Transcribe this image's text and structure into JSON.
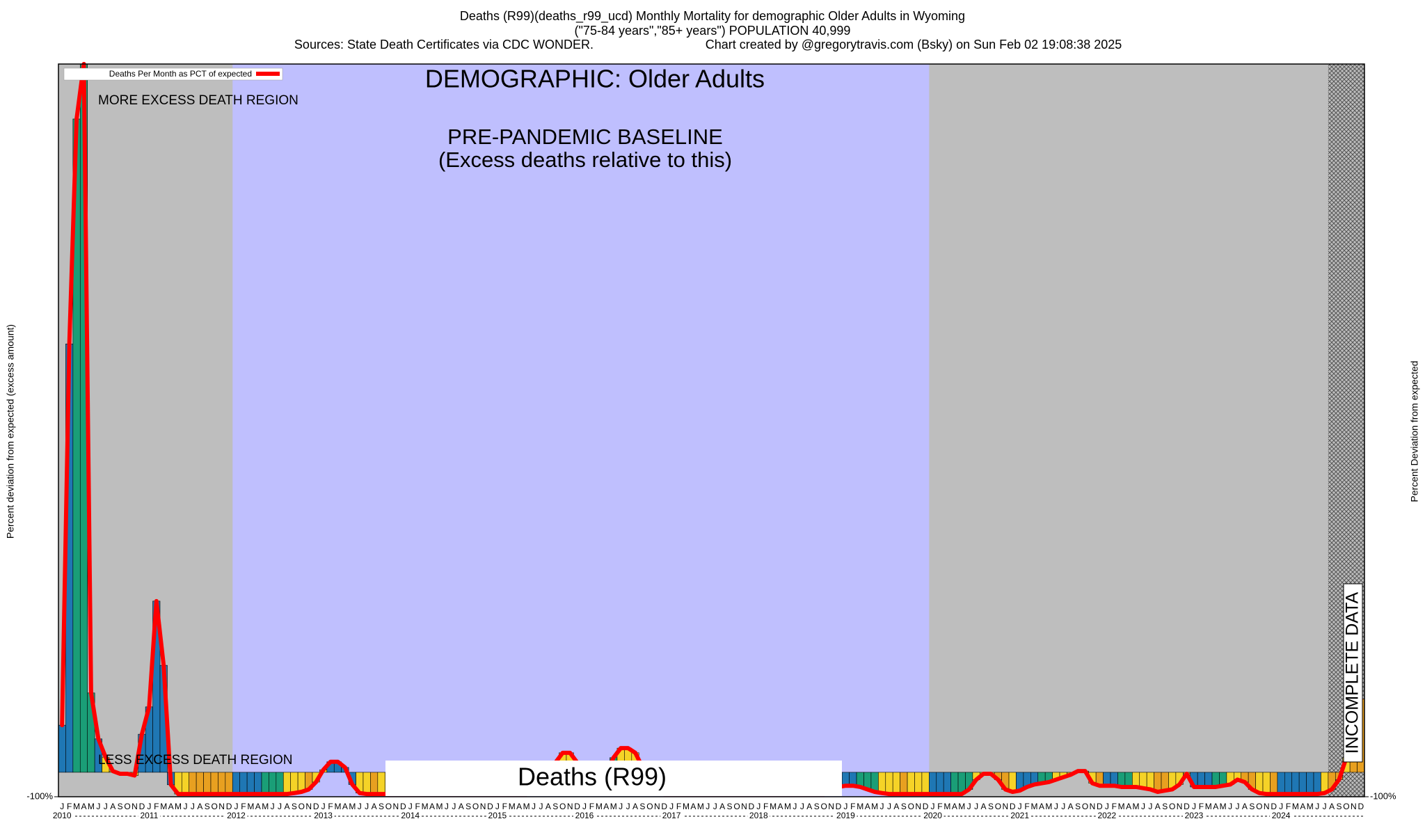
{
  "chart_data": {
    "type": "bar",
    "title": "Deaths (R99)(deaths_r99_ucd) Monthly Mortality for demographic Older Adults in Wyoming",
    "subtitle": "(\"75-84 years\",\"85+ years\") POPULATION 40,999",
    "source": "Sources: State Death Certificates via CDC WONDER.",
    "credit": "Chart created by @gregorytravis.com (Bsky) on Sun Feb 02 19:08:38 2025",
    "y_label": "Percent deviation from expected (excess amount)",
    "y2_label": "Percent Deviation from expected",
    "legend_label": "Deaths Per Month as PCT of expected",
    "line_color": "#ff0000",
    "demographic_label": "DEMOGRAPHIC: Older Adults",
    "baseline_label": "PRE-PANDEMIC BASELINE",
    "baseline_note": "(Excess deaths relative to this)",
    "more_label": "MORE EXCESS DEATH REGION",
    "less_label": "LESS EXCESS DEATH REGION",
    "cause_label": "Deaths (R99)",
    "incomplete_label": "INCOMPLETE DATA",
    "months": [
      "J",
      "F",
      "M",
      "A",
      "M",
      "J",
      "J",
      "A",
      "S",
      "O",
      "N",
      "D"
    ],
    "years": [
      "2010",
      "2011",
      "2012",
      "2013",
      "2014",
      "2015",
      "2016",
      "2017",
      "2018",
      "2019",
      "2020",
      "2021",
      "2022",
      "2023",
      "2024"
    ],
    "ylim": [
      -100,
      2900
    ],
    "yticks": [
      {
        "value": -100,
        "label": "-100%"
      }
    ],
    "values": [
      193,
      1754,
      2675,
      2900,
      325,
      137,
      62,
      5,
      -6,
      -6,
      -13,
      156,
      268,
      701,
      438,
      -51,
      -89,
      -89,
      -89,
      -89,
      -89,
      -89,
      -89,
      -89,
      -89,
      -89,
      -89,
      -89,
      -89,
      -89,
      -89,
      -89,
      -85,
      -80,
      -70,
      -40,
      10,
      43,
      43,
      20,
      -50,
      -85,
      -89,
      -89,
      -89,
      -89,
      -89,
      -89,
      -89,
      -89,
      -89,
      -89,
      -89,
      -89,
      -89,
      -89,
      -89,
      -89,
      -89,
      -89,
      -89,
      -89,
      -89,
      -89,
      -89,
      -85,
      -60,
      -20,
      40,
      80,
      80,
      40,
      -40,
      -70,
      -60,
      -10,
      60,
      99,
      99,
      80,
      20,
      -50,
      -85,
      -89,
      -89,
      -89,
      -89,
      -89,
      -89,
      -89,
      -89,
      -89,
      -89,
      -89,
      -89,
      -89,
      -89,
      -89,
      -89,
      -89,
      -89,
      -89,
      -89,
      -89,
      -89,
      -89,
      -75,
      -60,
      -55,
      -55,
      -60,
      -70,
      -80,
      -85,
      -89,
      -89,
      -89,
      -89,
      -89,
      -89,
      -89,
      -89,
      -89,
      -89,
      -89,
      -70,
      -30,
      -6,
      -6,
      -30,
      -70,
      -80,
      -75,
      -60,
      -50,
      -45,
      -40,
      -30,
      -20,
      -10,
      5,
      5,
      -45,
      -55,
      -55,
      -55,
      -60,
      -60,
      -60,
      -65,
      -70,
      -80,
      -75,
      -70,
      -50,
      -6,
      -60,
      -60,
      -60,
      -60,
      -55,
      -50,
      -30,
      -40,
      -70,
      -85,
      -89,
      -89,
      -89,
      -89,
      -89,
      -89,
      -89,
      -89,
      -85,
      -70,
      -30,
      60,
      240,
      300
    ],
    "bar_colors": [
      "#1f77b4",
      "#1f77b4",
      "#1a9e77",
      "#1a9e77",
      "#1a9e77",
      "#1f77b4",
      "#f5d327",
      "#f5d327",
      "#f5d327",
      "#e8a020",
      "#f5d327",
      "#1f77b4",
      "#1f77b4",
      "#1f77b4",
      "#1f77b4",
      "#1f77b4",
      "#f5d327",
      "#f5d327",
      "#e8a020",
      "#e8a020",
      "#e8a020",
      "#e8a020",
      "#e8a020",
      "#e8a020",
      "#1f77b4",
      "#1f77b4",
      "#1f77b4",
      "#1f77b4",
      "#1a9e77",
      "#1a9e77",
      "#1a9e77",
      "#f5d327",
      "#f5d327",
      "#f5d327",
      "#e8a020",
      "#f5d327",
      "#f5d327",
      "#1f77b4",
      "#1f77b4",
      "#1f77b4",
      "#1f77b4",
      "#f5d327",
      "#f5d327",
      "#e8a020",
      "#f5d327",
      "#f5d327",
      "#e8a020",
      "#e8a020",
      "#f5d327",
      "#f5d327",
      "#f5d327",
      "#e8a020",
      "#e8a020",
      "#1f77b4",
      "#1a9e77",
      "#1a9e77",
      "#1a9e77",
      "#f5d327",
      "#f5d327",
      "#f5d327",
      "#1f77b4",
      "#1f77b4",
      "#1f77b4",
      "#1a9e77",
      "#f5d327",
      "#f5d327",
      "#f5d327",
      "#e8a020",
      "#e8a020",
      "#f5d327",
      "#f5d327",
      "#e8a020",
      "#1f77b4",
      "#1f77b4",
      "#1a9e77",
      "#1a9e77",
      "#1a9e77",
      "#f5d327",
      "#f5d327",
      "#f5d327",
      "#e8a020",
      "#e8a020",
      "#1f77b4",
      "#1f77b4",
      "#1f77b4",
      "#1f77b4",
      "#1a9e77",
      "#1a9e77",
      "#f5d327",
      "#f5d327",
      "#f5d327",
      "#e8a020",
      "#e8a020",
      "#e8a020",
      "#e8a020",
      "#f5d327",
      "#1f77b4",
      "#1f77b4",
      "#1a9e77",
      "#1a9e77",
      "#1a9e77",
      "#f5d327",
      "#f5d327",
      "#e8a020",
      "#e8a020",
      "#f5d327",
      "#f5d327",
      "#1f77b4",
      "#1f77b4",
      "#1f77b4",
      "#1a9e77",
      "#1a9e77",
      "#1a9e77",
      "#f5d327",
      "#f5d327",
      "#f5d327",
      "#e8a020",
      "#f5d327",
      "#f5d327",
      "#f5d327",
      "#1f77b4",
      "#1f77b4",
      "#1f77b4",
      "#1a9e77",
      "#1a9e77",
      "#1a9e77",
      "#f5d327",
      "#f5d327",
      "#f5d327",
      "#e8a020",
      "#e8a020",
      "#f5d327",
      "#1f77b4",
      "#1f77b4",
      "#1f77b4",
      "#1a9e77",
      "#1a9e77",
      "#f5d327",
      "#f5d327",
      "#e8a020",
      "#e8a020",
      "#f5d327",
      "#f5d327",
      "#e8a020",
      "#1f77b4",
      "#1f77b4",
      "#1a9e77",
      "#1a9e77",
      "#f5d327",
      "#f5d327",
      "#f5d327",
      "#e8a020",
      "#e8a020",
      "#f5d327",
      "#f5d327",
      "#e8a020",
      "#1f77b4",
      "#1f77b4",
      "#1f77b4",
      "#1a9e77",
      "#1a9e77",
      "#f5d327",
      "#f5d327",
      "#e8a020",
      "#e8a020",
      "#f5d327",
      "#f5d327",
      "#e8a020",
      "#1f77b4",
      "#1f77b4",
      "#1f77b4",
      "#1f77b4",
      "#1f77b4",
      "#1f77b4",
      "#f5d327",
      "#e8a020",
      "#e8a020",
      "#f5d327",
      "#e8a020",
      "#e8a020"
    ]
  }
}
